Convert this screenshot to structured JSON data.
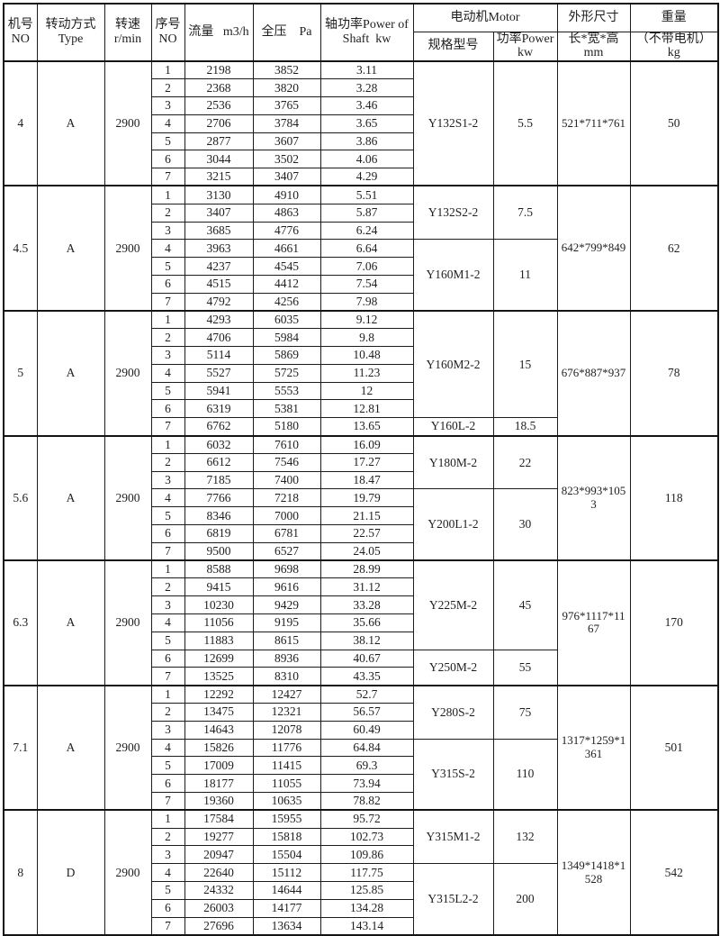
{
  "colors": {
    "background": "#ffffff",
    "border": "#1c1c1c",
    "border_heavy": "#141414",
    "text": "#1f1f1f"
  },
  "table": {
    "headers": {
      "machine_no": "机号\nNO",
      "drive_type": "转动方式\nType",
      "speed": "转速\nr/min",
      "serial_no": "序号\nNO",
      "flow": "流量   m3/h",
      "pressure": "全压    Pa",
      "shaft_power": "轴功率Power of\nShaft  kw",
      "motor_group": "电动机Motor",
      "motor_model": "规格型号",
      "motor_power": "功率Power\nkw",
      "dimensions_title": "外形尺寸",
      "dimensions_unit": "长*宽*高\nmm",
      "weight_title": "重量",
      "weight_unit": "（不带电机）\nkg"
    },
    "blocks": [
      {
        "machine_no": "4",
        "drive_type": "A",
        "speed": "2900",
        "rows": [
          {
            "no": "1",
            "flow": "2198",
            "pressure": "3852",
            "shaft_power": "3.11"
          },
          {
            "no": "2",
            "flow": "2368",
            "pressure": "3820",
            "shaft_power": "3.28"
          },
          {
            "no": "3",
            "flow": "2536",
            "pressure": "3765",
            "shaft_power": "3.46"
          },
          {
            "no": "4",
            "flow": "2706",
            "pressure": "3784",
            "shaft_power": "3.65"
          },
          {
            "no": "5",
            "flow": "2877",
            "pressure": "3607",
            "shaft_power": "3.86"
          },
          {
            "no": "6",
            "flow": "3044",
            "pressure": "3502",
            "shaft_power": "4.06"
          },
          {
            "no": "7",
            "flow": "3215",
            "pressure": "3407",
            "shaft_power": "4.29"
          }
        ],
        "motors": [
          {
            "model": "Y132S1-2",
            "power": "5.5",
            "span": 7
          }
        ],
        "dimensions": "521*711*761",
        "weight": "50"
      },
      {
        "machine_no": "4.5",
        "drive_type": "A",
        "speed": "2900",
        "rows": [
          {
            "no": "1",
            "flow": "3130",
            "pressure": "4910",
            "shaft_power": "5.51"
          },
          {
            "no": "2",
            "flow": "3407",
            "pressure": "4863",
            "shaft_power": "5.87"
          },
          {
            "no": "3",
            "flow": "3685",
            "pressure": "4776",
            "shaft_power": "6.24"
          },
          {
            "no": "4",
            "flow": "3963",
            "pressure": "4661",
            "shaft_power": "6.64"
          },
          {
            "no": "5",
            "flow": "4237",
            "pressure": "4545",
            "shaft_power": "7.06"
          },
          {
            "no": "6",
            "flow": "4515",
            "pressure": "4412",
            "shaft_power": "7.54"
          },
          {
            "no": "7",
            "flow": "4792",
            "pressure": "4256",
            "shaft_power": "7.98"
          }
        ],
        "motors": [
          {
            "model": "Y132S2-2",
            "power": "7.5",
            "span": 3
          },
          {
            "model": "Y160M1-2",
            "power": "11",
            "span": 4
          }
        ],
        "dimensions": "642*799*849",
        "weight": "62"
      },
      {
        "machine_no": "5",
        "drive_type": "A",
        "speed": "2900",
        "rows": [
          {
            "no": "1",
            "flow": "4293",
            "pressure": "6035",
            "shaft_power": "9.12"
          },
          {
            "no": "2",
            "flow": "4706",
            "pressure": "5984",
            "shaft_power": "9.8"
          },
          {
            "no": "3",
            "flow": "5114",
            "pressure": "5869",
            "shaft_power": "10.48"
          },
          {
            "no": "4",
            "flow": "5527",
            "pressure": "5725",
            "shaft_power": "11.23"
          },
          {
            "no": "5",
            "flow": "5941",
            "pressure": "5553",
            "shaft_power": "12"
          },
          {
            "no": "6",
            "flow": "6319",
            "pressure": "5381",
            "shaft_power": "12.81"
          },
          {
            "no": "7",
            "flow": "6762",
            "pressure": "5180",
            "shaft_power": "13.65"
          }
        ],
        "motors": [
          {
            "model": "Y160M2-2",
            "power": "15",
            "span": 6
          },
          {
            "model": "Y160L-2",
            "power": "18.5",
            "span": 1
          }
        ],
        "dimensions": "676*887*937",
        "weight": "78"
      },
      {
        "machine_no": "5.6",
        "drive_type": "A",
        "speed": "2900",
        "rows": [
          {
            "no": "1",
            "flow": "6032",
            "pressure": "7610",
            "shaft_power": "16.09"
          },
          {
            "no": "2",
            "flow": "6612",
            "pressure": "7546",
            "shaft_power": "17.27"
          },
          {
            "no": "3",
            "flow": "7185",
            "pressure": "7400",
            "shaft_power": "18.47"
          },
          {
            "no": "4",
            "flow": "7766",
            "pressure": "7218",
            "shaft_power": "19.79"
          },
          {
            "no": "5",
            "flow": "8346",
            "pressure": "7000",
            "shaft_power": "21.15"
          },
          {
            "no": "6",
            "flow": "6819",
            "pressure": "6781",
            "shaft_power": "22.57"
          },
          {
            "no": "7",
            "flow": "9500",
            "pressure": "6527",
            "shaft_power": "24.05"
          }
        ],
        "motors": [
          {
            "model": "Y180M-2",
            "power": "22",
            "span": 3
          },
          {
            "model": "Y200L1-2",
            "power": "30",
            "span": 4
          }
        ],
        "dimensions": "823*993*1053",
        "weight": "118"
      },
      {
        "machine_no": "6.3",
        "drive_type": "A",
        "speed": "2900",
        "rows": [
          {
            "no": "1",
            "flow": "8588",
            "pressure": "9698",
            "shaft_power": "28.99"
          },
          {
            "no": "2",
            "flow": "9415",
            "pressure": "9616",
            "shaft_power": "31.12"
          },
          {
            "no": "3",
            "flow": "10230",
            "pressure": "9429",
            "shaft_power": "33.28"
          },
          {
            "no": "4",
            "flow": "11056",
            "pressure": "9195",
            "shaft_power": "35.66"
          },
          {
            "no": "5",
            "flow": "11883",
            "pressure": "8615",
            "shaft_power": "38.12"
          },
          {
            "no": "6",
            "flow": "12699",
            "pressure": "8936",
            "shaft_power": "40.67"
          },
          {
            "no": "7",
            "flow": "13525",
            "pressure": "8310",
            "shaft_power": "43.35"
          }
        ],
        "motors": [
          {
            "model": "Y225M-2",
            "power": "45",
            "span": 5
          },
          {
            "model": "Y250M-2",
            "power": "55",
            "span": 2
          }
        ],
        "dimensions": "976*1117*1167",
        "weight": "170"
      },
      {
        "machine_no": "7.1",
        "drive_type": "A",
        "speed": "2900",
        "rows": [
          {
            "no": "1",
            "flow": "12292",
            "pressure": "12427",
            "shaft_power": "52.7"
          },
          {
            "no": "2",
            "flow": "13475",
            "pressure": "12321",
            "shaft_power": "56.57"
          },
          {
            "no": "3",
            "flow": "14643",
            "pressure": "12078",
            "shaft_power": "60.49"
          },
          {
            "no": "4",
            "flow": "15826",
            "pressure": "11776",
            "shaft_power": "64.84"
          },
          {
            "no": "5",
            "flow": "17009",
            "pressure": "11415",
            "shaft_power": "69.3"
          },
          {
            "no": "6",
            "flow": "18177",
            "pressure": "11055",
            "shaft_power": "73.94"
          },
          {
            "no": "7",
            "flow": "19360",
            "pressure": "10635",
            "shaft_power": "78.82"
          }
        ],
        "motors": [
          {
            "model": "Y280S-2",
            "power": "75",
            "span": 3
          },
          {
            "model": "Y315S-2",
            "power": "110",
            "span": 4
          }
        ],
        "dimensions": "1317*1259*1361",
        "weight": "501"
      },
      {
        "machine_no": "8",
        "drive_type": "D",
        "speed": "2900",
        "rows": [
          {
            "no": "1",
            "flow": "17584",
            "pressure": "15955",
            "shaft_power": "95.72"
          },
          {
            "no": "2",
            "flow": "19277",
            "pressure": "15818",
            "shaft_power": "102.73"
          },
          {
            "no": "3",
            "flow": "20947",
            "pressure": "15504",
            "shaft_power": "109.86"
          },
          {
            "no": "4",
            "flow": "22640",
            "pressure": "15112",
            "shaft_power": "117.75"
          },
          {
            "no": "5",
            "flow": "24332",
            "pressure": "14644",
            "shaft_power": "125.85"
          },
          {
            "no": "6",
            "flow": "26003",
            "pressure": "14177",
            "shaft_power": "134.28"
          },
          {
            "no": "7",
            "flow": "27696",
            "pressure": "13634",
            "shaft_power": "143.14"
          }
        ],
        "motors": [
          {
            "model": "Y315M1-2",
            "power": "132",
            "span": 3
          },
          {
            "model": "Y315L2-2",
            "power": "200",
            "span": 4
          }
        ],
        "dimensions": "1349*1418*1528",
        "weight": "542"
      }
    ]
  }
}
